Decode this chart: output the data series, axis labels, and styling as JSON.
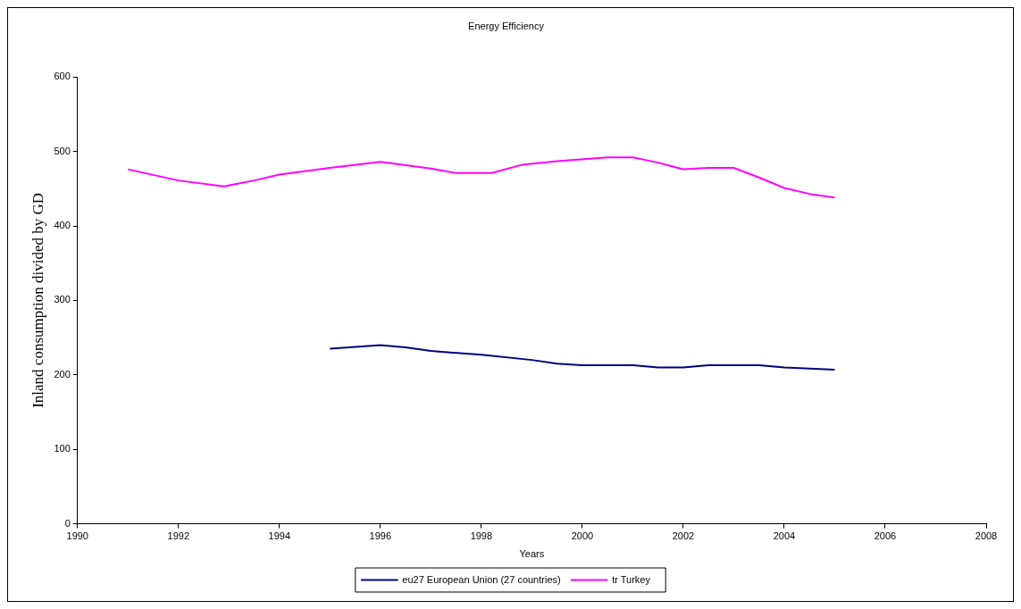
{
  "chart_data": {
    "type": "line",
    "title": "Energy Efficiency",
    "xlabel": "Years",
    "ylabel": "Inland consumption divided by GD",
    "xlim": [
      1990,
      2008
    ],
    "xticks": [
      1990,
      1992,
      1994,
      1996,
      1998,
      2000,
      2002,
      2004,
      2006,
      2008
    ],
    "ylim": [
      0,
      600
    ],
    "yticks": [
      0,
      100,
      200,
      300,
      400,
      500,
      600
    ],
    "grid": false,
    "legend": "bottom",
    "marker": "none",
    "line_style": "solid",
    "series": [
      {
        "name": "eu27 European Union (27 countries)",
        "color": "#000080",
        "x": [
          1995,
          1996,
          1996.5,
          1997,
          1998,
          1999,
          1999.5,
          2000,
          2001,
          2001.5,
          2002,
          2002.5,
          2003.5,
          2004,
          2005
        ],
        "values": [
          235,
          240,
          237,
          232,
          227,
          220,
          215,
          213,
          213,
          210,
          210,
          213,
          213,
          210,
          207
        ]
      },
      {
        "name": "tr Turkey",
        "color": "#ff00ff",
        "x": [
          1991,
          1992,
          1992.9,
          1993.5,
          1994,
          1995,
          1996,
          1997,
          1997.5,
          1998.2,
          1998.8,
          1999.5,
          2000.5,
          2001,
          2001.5,
          2002,
          2002.5,
          2003,
          2003.5,
          2004,
          2004.5,
          2005
        ],
        "values": [
          476,
          461,
          453,
          461,
          469,
          478,
          486,
          477,
          471,
          471,
          482,
          487,
          492,
          492,
          485,
          476,
          478,
          478,
          465,
          451,
          443,
          438
        ]
      }
    ]
  }
}
